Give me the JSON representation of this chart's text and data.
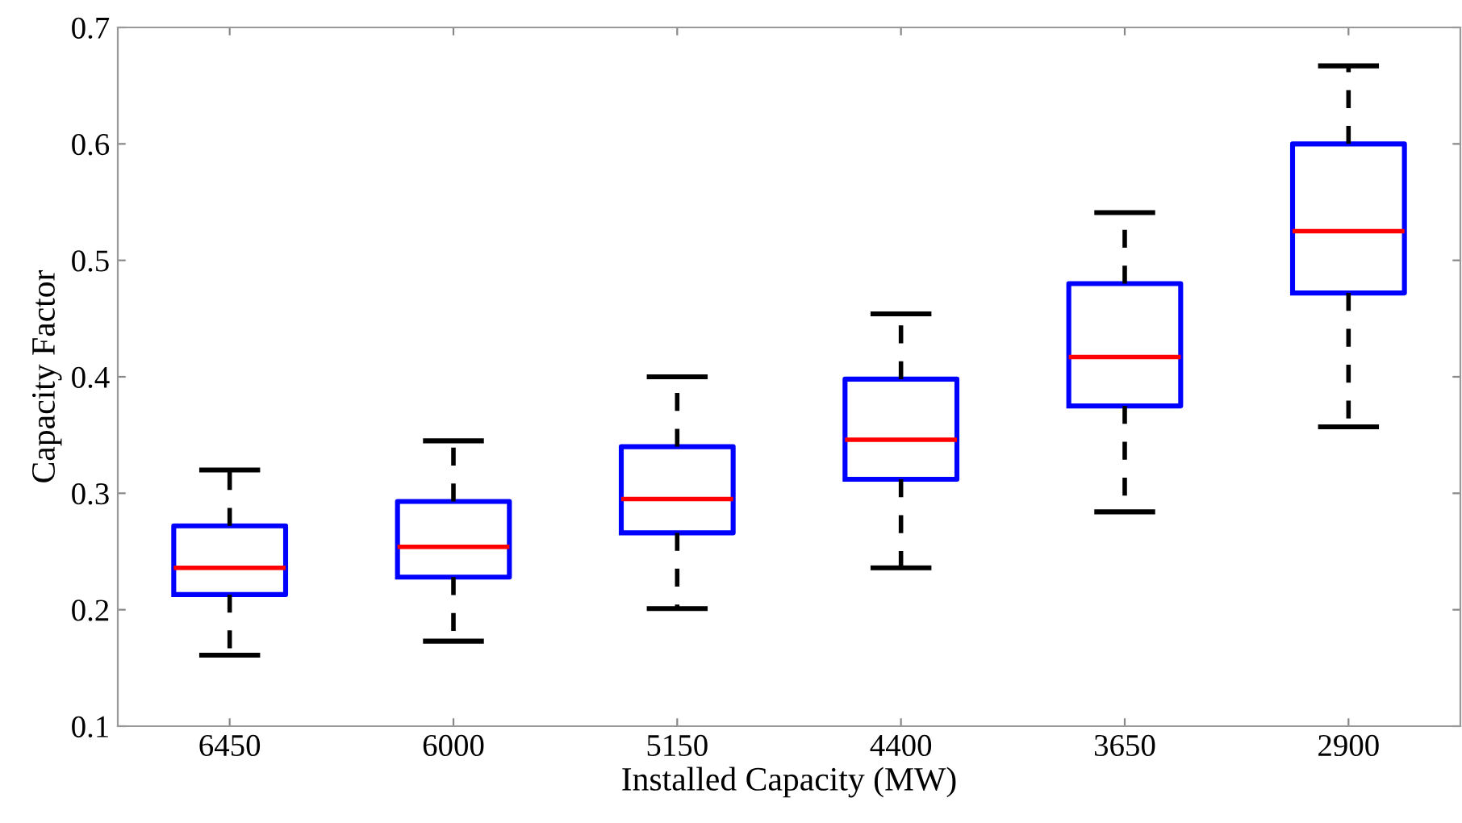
{
  "chart_data": {
    "type": "box",
    "xlabel": "Installed Capacity (MW)",
    "ylabel": "Capacity Factor",
    "categories": [
      "6450",
      "6000",
      "5150",
      "4400",
      "3650",
      "2900"
    ],
    "boxes": [
      {
        "low": 0.161,
        "q1": 0.213,
        "median": 0.236,
        "q3": 0.272,
        "high": 0.32
      },
      {
        "low": 0.173,
        "q1": 0.228,
        "median": 0.254,
        "q3": 0.293,
        "high": 0.345
      },
      {
        "low": 0.201,
        "q1": 0.266,
        "median": 0.295,
        "q3": 0.34,
        "high": 0.4
      },
      {
        "low": 0.236,
        "q1": 0.312,
        "median": 0.346,
        "q3": 0.398,
        "high": 0.454
      },
      {
        "low": 0.284,
        "q1": 0.375,
        "median": 0.417,
        "q3": 0.48,
        "high": 0.541
      },
      {
        "low": 0.357,
        "q1": 0.472,
        "median": 0.525,
        "q3": 0.6,
        "high": 0.667
      }
    ],
    "color": "#0000ff",
    "line_style": "dashed",
    "ylim": [
      0.1,
      0.7
    ],
    "yticks": [
      0.1,
      0.2,
      0.3,
      0.4,
      0.5,
      0.6,
      0.7
    ],
    "grid": false,
    "legend": false
  }
}
